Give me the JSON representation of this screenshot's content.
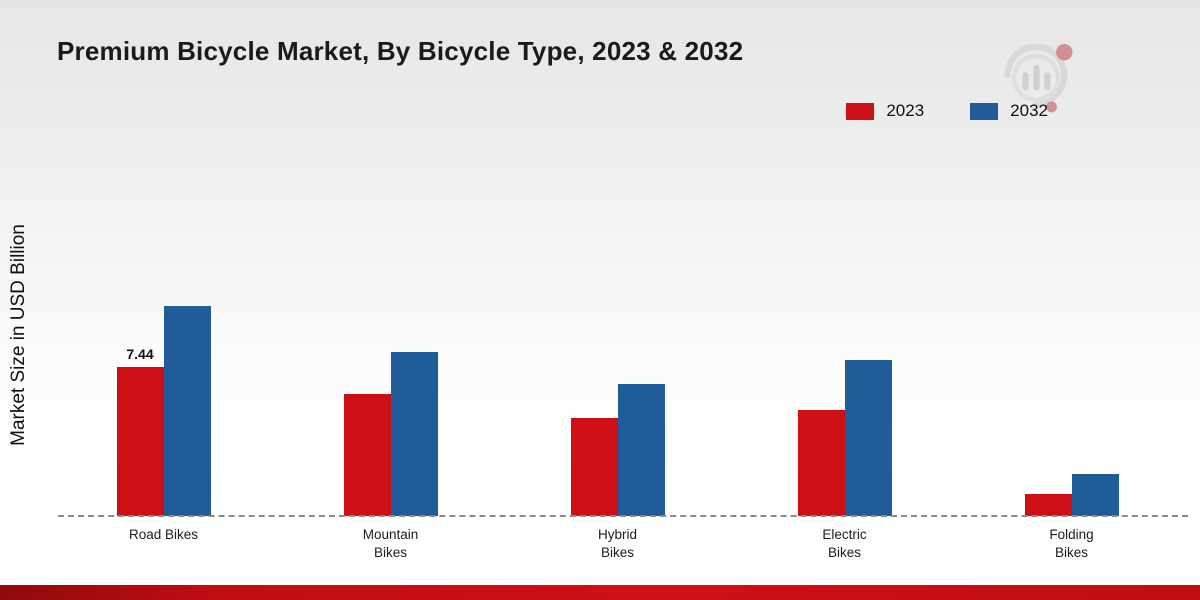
{
  "title": "Premium Bicycle Market, By Bicycle Type, 2023 & 2032",
  "ylabel": "Market Size in USD Billion",
  "colors": {
    "series_2023": "#cc1016",
    "series_2032": "#1f5c99",
    "bottom_strip": "#c00d12",
    "baseline": "#8a8a8a"
  },
  "chart_data": {
    "type": "bar",
    "title": "Premium Bicycle Market, By Bicycle Type, 2023 & 2032",
    "ylabel": "Market Size in USD Billion",
    "xlabel": "",
    "categories": [
      "Road Bikes",
      "Mountain Bikes",
      "Hybrid Bikes",
      "Electric Bikes",
      "Folding Bikes"
    ],
    "series": [
      {
        "name": "2023",
        "color": "#cc1016",
        "values": [
          7.44,
          6.1,
          4.9,
          5.3,
          1.1
        ]
      },
      {
        "name": "2032",
        "color": "#1f5c99",
        "values": [
          10.5,
          8.2,
          6.6,
          7.8,
          2.1
        ]
      }
    ],
    "data_labels": [
      {
        "series": 0,
        "category": 0,
        "text": "7.44"
      }
    ],
    "ylim": [
      0,
      11
    ],
    "grid": false,
    "legend_position": "top-right",
    "baseline_style": "dashed"
  }
}
